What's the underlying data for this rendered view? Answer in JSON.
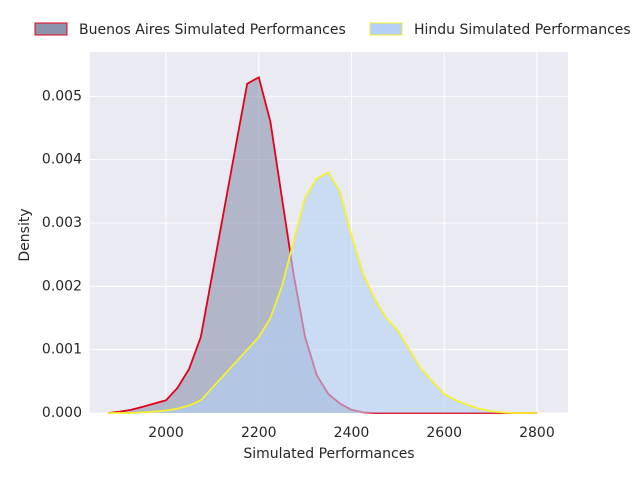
{
  "chart_data": {
    "type": "area",
    "xlabel": "Simulated Performances",
    "ylabel": "Density",
    "x": [
      1875,
      1900,
      1925,
      1950,
      1975,
      2000,
      2025,
      2050,
      2075,
      2100,
      2125,
      2150,
      2175,
      2200,
      2225,
      2250,
      2275,
      2300,
      2325,
      2350,
      2375,
      2400,
      2425,
      2450,
      2475,
      2500,
      2525,
      2550,
      2575,
      2600,
      2625,
      2650,
      2675,
      2700,
      2725,
      2750,
      2775,
      2800
    ],
    "series": [
      {
        "name": "Buenos Aires Simulated Performances",
        "color": "#e3001b",
        "fill": "#8c93ad",
        "values": [
          0,
          2e-05,
          5e-05,
          0.0001,
          0.00015,
          0.0002,
          0.0004,
          0.0007,
          0.0012,
          0.0022,
          0.0032,
          0.0042,
          0.0052,
          0.0053,
          0.0046,
          0.0034,
          0.0022,
          0.0012,
          0.0006,
          0.0003,
          0.00015,
          5e-05,
          1e-05,
          0,
          0,
          0,
          0,
          0,
          0,
          0,
          0,
          0,
          0,
          0,
          0,
          0,
          0,
          0
        ]
      },
      {
        "name": "Hindu Simulated Performances",
        "color": "#f5f22e",
        "fill": "#b4d0f5",
        "values": [
          0,
          0,
          0,
          1e-05,
          2e-05,
          4e-05,
          7e-05,
          0.00012,
          0.0002,
          0.0004,
          0.0006,
          0.0008,
          0.001,
          0.0012,
          0.0015,
          0.002,
          0.0027,
          0.0034,
          0.0037,
          0.0038,
          0.0035,
          0.0028,
          0.0022,
          0.0018,
          0.0015,
          0.0013,
          0.001,
          0.0007,
          0.0005,
          0.0003,
          0.0002,
          0.00013,
          7e-05,
          3e-05,
          1e-05,
          0,
          0,
          0
        ]
      }
    ],
    "xlim": [
      1836,
      2867
    ],
    "ylim": [
      0,
      0.0057
    ],
    "xticks": [
      2000,
      2200,
      2400,
      2600,
      2800
    ],
    "yticks": [
      {
        "value": 0,
        "label": "0.000"
      },
      0.001,
      0.002,
      0.003,
      0.004,
      0.005
    ],
    "grid": true,
    "legend": "top"
  }
}
